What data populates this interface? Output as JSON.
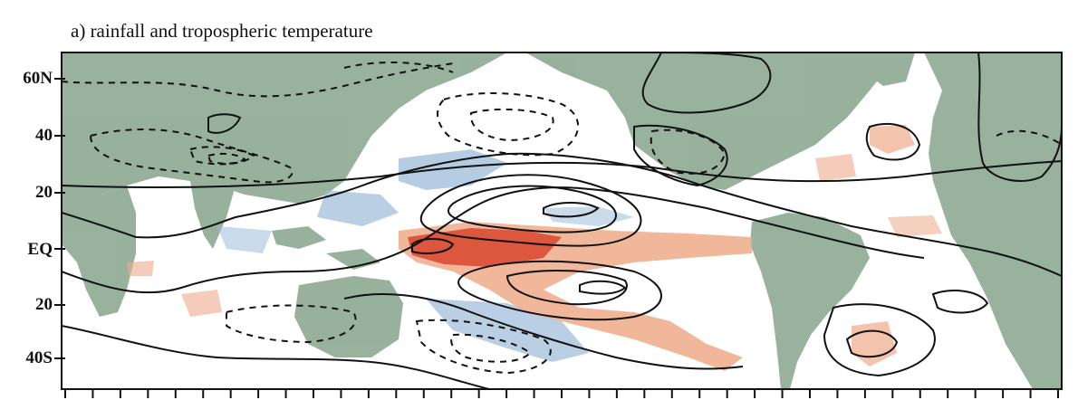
{
  "title": "a) rainfall and tropospheric temperature",
  "y_axis": {
    "tick_labels": [
      "60N",
      "40",
      "20",
      "EQ",
      "20",
      "40S"
    ]
  },
  "map": {
    "description_elements": [
      "land-masses",
      "rainfall-anomaly-shading",
      "temperature-contours"
    ],
    "colors": {
      "land": "#8aa78f",
      "rain_positive": "#e6794f",
      "rain_positive_strong": "#d9452e",
      "rain_negative": "#9cbbd8",
      "contour": "#111111"
    }
  }
}
